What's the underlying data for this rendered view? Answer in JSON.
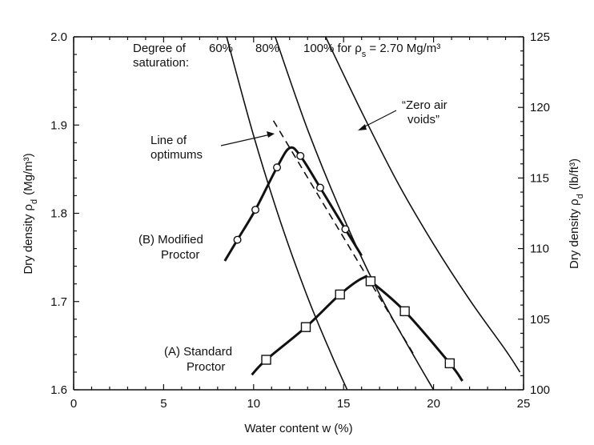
{
  "chart_data": {
    "type": "line",
    "xlabel": "Water content w (%)",
    "ylabel": "Dry density ρ",
    "ylabel_sub": "d",
    "ylabel_unit": "(Mg/m³)",
    "y2label": "Dry density ρ",
    "y2label_sub": "d",
    "y2label_unit": "(lb/ft³)",
    "xlim": [
      0,
      25
    ],
    "ylim": [
      1.6,
      2.0
    ],
    "y2lim": [
      100,
      125
    ],
    "grid": false,
    "x_ticks": [
      "0",
      "5",
      "10",
      "15",
      "20",
      "25"
    ],
    "x_tick_values": [
      0,
      5,
      10,
      15,
      20,
      25
    ],
    "y_ticks": [
      "1.6",
      "1.7",
      "1.8",
      "1.9",
      "2.0"
    ],
    "y_tick_values": [
      1.6,
      1.7,
      1.8,
      1.9,
      2.0
    ],
    "y2_ticks": [
      "100",
      "105",
      "110",
      "115",
      "120",
      "125"
    ],
    "y2_tick_values": [
      100,
      105,
      110,
      115,
      120,
      125
    ],
    "series": [
      {
        "name": "(B) Modified Proctor",
        "name_line1": "(B) Modified",
        "name_line2": "Proctor",
        "marker": "circle",
        "points": [
          {
            "x": 9.1,
            "y": 1.77
          },
          {
            "x": 10.1,
            "y": 1.804
          },
          {
            "x": 11.3,
            "y": 1.852
          },
          {
            "x": 12.6,
            "y": 1.865
          },
          {
            "x": 13.7,
            "y": 1.829
          },
          {
            "x": 15.1,
            "y": 1.782
          }
        ],
        "curve": [
          {
            "x": 8.4,
            "y": 1.746
          },
          {
            "x": 9.1,
            "y": 1.77
          },
          {
            "x": 10.1,
            "y": 1.804
          },
          {
            "x": 11.3,
            "y": 1.852
          },
          {
            "x": 12.0,
            "y": 1.874
          },
          {
            "x": 12.6,
            "y": 1.865
          },
          {
            "x": 13.7,
            "y": 1.829
          },
          {
            "x": 15.1,
            "y": 1.782
          },
          {
            "x": 16.0,
            "y": 1.752
          }
        ]
      },
      {
        "name": "(A) Standard Proctor",
        "name_line1": "(A) Standard",
        "name_line2": "Proctor",
        "marker": "square",
        "points": [
          {
            "x": 10.7,
            "y": 1.634
          },
          {
            "x": 12.9,
            "y": 1.671
          },
          {
            "x": 14.8,
            "y": 1.708
          },
          {
            "x": 16.5,
            "y": 1.723
          },
          {
            "x": 18.4,
            "y": 1.689
          },
          {
            "x": 20.9,
            "y": 1.63
          }
        ],
        "curve": [
          {
            "x": 9.9,
            "y": 1.617
          },
          {
            "x": 10.7,
            "y": 1.634
          },
          {
            "x": 12.9,
            "y": 1.671
          },
          {
            "x": 14.8,
            "y": 1.708
          },
          {
            "x": 16.1,
            "y": 1.727
          },
          {
            "x": 16.5,
            "y": 1.723
          },
          {
            "x": 18.4,
            "y": 1.689
          },
          {
            "x": 20.9,
            "y": 1.63
          },
          {
            "x": 21.6,
            "y": 1.61
          }
        ]
      }
    ],
    "saturation_curves": [
      {
        "label": "60%",
        "points": [
          {
            "x": 8.5,
            "y": 2.0
          },
          {
            "x": 10.0,
            "y": 1.888
          },
          {
            "x": 11.5,
            "y": 1.79
          },
          {
            "x": 13.0,
            "y": 1.705
          },
          {
            "x": 14.3,
            "y": 1.641
          },
          {
            "x": 15.2,
            "y": 1.6
          }
        ]
      },
      {
        "label": "80%",
        "points": [
          {
            "x": 11.2,
            "y": 2.0
          },
          {
            "x": 13.0,
            "y": 1.895
          },
          {
            "x": 15.0,
            "y": 1.795
          },
          {
            "x": 17.0,
            "y": 1.708
          },
          {
            "x": 19.0,
            "y": 1.635
          },
          {
            "x": 20.0,
            "y": 1.6
          }
        ]
      },
      {
        "label": "100% for ρ",
        "label_sub": "s",
        "label_suffix": " = 2.70 Mg/m³",
        "points": [
          {
            "x": 14.0,
            "y": 2.0
          },
          {
            "x": 16.0,
            "y": 1.915
          },
          {
            "x": 18.0,
            "y": 1.835
          },
          {
            "x": 20.0,
            "y": 1.765
          },
          {
            "x": 22.0,
            "y": 1.702
          },
          {
            "x": 24.0,
            "y": 1.645
          },
          {
            "x": 24.8,
            "y": 1.62
          }
        ]
      }
    ],
    "line_of_optimums": [
      {
        "x": 11.1,
        "y": 1.905
      },
      {
        "x": 18.9,
        "y": 1.64
      }
    ],
    "annotations": {
      "degree_line1": "Degree of",
      "degree_line2": "saturation:",
      "optimums_line1": "Line of",
      "optimums_line2": "optimums",
      "zero_air_line1": "“Zero air",
      "zero_air_line2": "voids”"
    }
  }
}
